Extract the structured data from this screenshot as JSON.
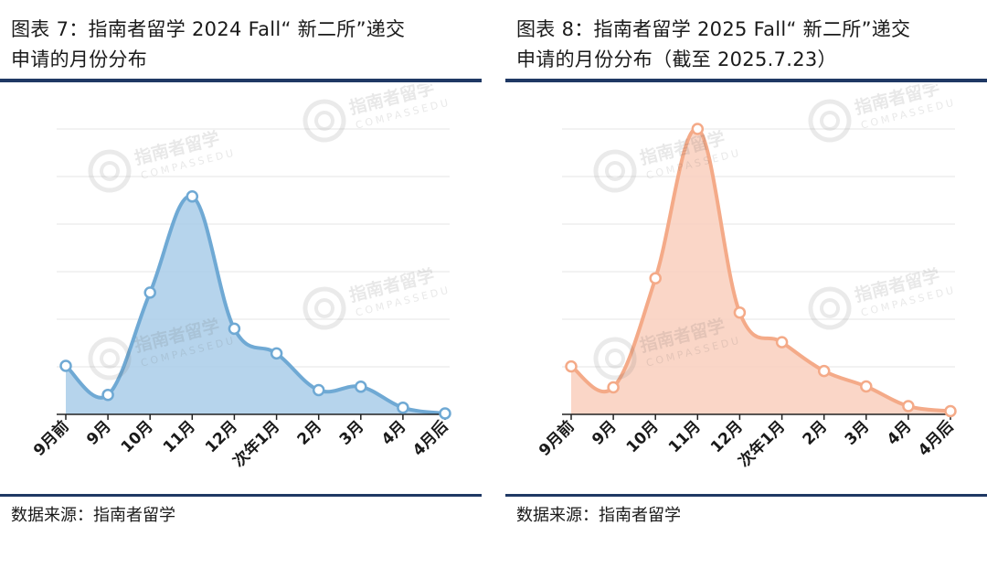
{
  "watermark": {
    "brand": "指南者留学",
    "sub": "COMPASSEDU"
  },
  "panels": [
    {
      "title_line1": "图表 7：指南者留学 2024 Fall“ 新二所”递交",
      "title_line2": "申请的月份分布",
      "source": "数据来源：指南者留学"
    },
    {
      "title_line1": "图表 8：指南者留学 2025 Fall“ 新二所”递交",
      "title_line2": "申请的月份分布（截至 2025.7.23）",
      "source": "数据来源：指南者留学"
    }
  ],
  "chart_data": [
    {
      "type": "area",
      "title": "图表 7：指南者留学 2024 Fall“ 新二所”递交申请的月份分布",
      "categories": [
        "9月前",
        "9月",
        "10月",
        "11月",
        "12月",
        "次年1月",
        "2月",
        "3月",
        "4月",
        "4月后"
      ],
      "values": [
        10.2,
        4.1,
        25.6,
        45.8,
        18.0,
        12.8,
        5.1,
        5.8,
        1.4,
        0.2
      ],
      "ylim": [
        0,
        60
      ],
      "grid": true,
      "colors": {
        "line": "#6fa9d4",
        "fill": "#a9cde9",
        "marker_fill": "#ffffff"
      }
    },
    {
      "type": "area",
      "title": "图表 8：指南者留学 2025 Fall“ 新二所”递交申请的月份分布（截至 2025.7.23）",
      "categories": [
        "9月前",
        "9月",
        "10月",
        "11月",
        "12月",
        "次年1月",
        "2月",
        "3月",
        "4月",
        "4月后"
      ],
      "values": [
        10.5,
        5.9,
        29.8,
        62.5,
        22.3,
        15.8,
        9.5,
        6.1,
        1.8,
        0.7
      ],
      "ylim": [
        0,
        62.5
      ],
      "grid": true,
      "colors": {
        "line": "#f4aa88",
        "fill": "#f9cfbd",
        "marker_fill": "#ffffff"
      }
    }
  ]
}
